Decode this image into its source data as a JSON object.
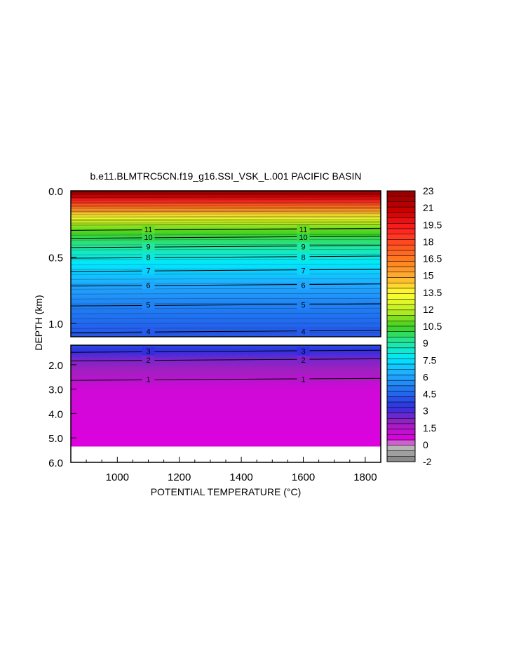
{
  "chart_data": {
    "type": "heatmap",
    "title": "b.e11.BLMTRC5CN.f19_g16.SSI_VSK_L.001 PACIFIC BASIN",
    "xlabel": "POTENTIAL TEMPERATURE (°C)",
    "ylabel": "DEPTH (km)",
    "xlim": [
      850,
      1850
    ],
    "x_ticks": [
      "1000",
      "1200",
      "1400",
      "1600",
      "1800"
    ],
    "upper_panel": {
      "ylim": [
        0.0,
        1.1
      ],
      "y_ticks": [
        "0.0",
        "0.5",
        "1.0"
      ],
      "contour_labels": [
        {
          "value": "11",
          "depth": 0.29
        },
        {
          "value": "10",
          "depth": 0.35
        },
        {
          "value": "9",
          "depth": 0.42
        },
        {
          "value": "8",
          "depth": 0.5
        },
        {
          "value": "7",
          "depth": 0.6
        },
        {
          "value": "6",
          "depth": 0.71
        },
        {
          "value": "5",
          "depth": 0.86
        },
        {
          "value": "4",
          "depth": 1.06
        }
      ]
    },
    "lower_panel": {
      "ylim": [
        1.2,
        6.0
      ],
      "y_ticks": [
        "2.0",
        "3.0",
        "4.0",
        "5.0",
        "6.0"
      ],
      "bottom_depth": 5.35,
      "contour_labels": [
        {
          "value": "3",
          "depth": 1.45
        },
        {
          "value": "2",
          "depth": 1.8
        },
        {
          "value": "1",
          "depth": 2.6
        }
      ]
    },
    "label_columns": [
      1100,
      1600
    ],
    "colorbar": {
      "min": -2,
      "max": 23,
      "step": 0.5,
      "labels": [
        "23",
        "21",
        "19.5",
        "18",
        "16.5",
        "15",
        "13.5",
        "12",
        "10.5",
        "9",
        "7.5",
        "6",
        "4.5",
        "3",
        "1.5",
        "0",
        "-2"
      ],
      "stops": [
        {
          "v": -2,
          "c": "#808080"
        },
        {
          "v": -0.5,
          "c": "#c0c0c0"
        },
        {
          "v": 0,
          "c": "#e000e0"
        },
        {
          "v": 1.5,
          "c": "#a020c0"
        },
        {
          "v": 3,
          "c": "#3030e0"
        },
        {
          "v": 4.5,
          "c": "#2070f0"
        },
        {
          "v": 6,
          "c": "#20a8ff"
        },
        {
          "v": 7.5,
          "c": "#00e8ff"
        },
        {
          "v": 9,
          "c": "#20e8a0"
        },
        {
          "v": 10.5,
          "c": "#40d020"
        },
        {
          "v": 12,
          "c": "#c0f020"
        },
        {
          "v": 13.5,
          "c": "#ffff30"
        },
        {
          "v": 15,
          "c": "#ffb030"
        },
        {
          "v": 16.5,
          "c": "#ff8020"
        },
        {
          "v": 18,
          "c": "#ff5020"
        },
        {
          "v": 19.5,
          "c": "#ff2020"
        },
        {
          "v": 21,
          "c": "#d00000"
        },
        {
          "v": 23,
          "c": "#900000"
        }
      ]
    },
    "surface_profile": [
      {
        "depth": 0.0,
        "temp": 23
      },
      {
        "depth": 0.06,
        "temp": 20
      },
      {
        "depth": 0.12,
        "temp": 17
      },
      {
        "depth": 0.19,
        "temp": 13.5
      },
      {
        "depth": 0.26,
        "temp": 11.5
      },
      {
        "depth": 0.35,
        "temp": 10
      },
      {
        "depth": 0.5,
        "temp": 8
      },
      {
        "depth": 0.6,
        "temp": 7
      },
      {
        "depth": 0.71,
        "temp": 6
      },
      {
        "depth": 0.86,
        "temp": 5
      },
      {
        "depth": 1.06,
        "temp": 4
      },
      {
        "depth": 1.2,
        "temp": 3.6
      },
      {
        "depth": 1.45,
        "temp": 3
      },
      {
        "depth": 1.8,
        "temp": 2
      },
      {
        "depth": 2.6,
        "temp": 1
      },
      {
        "depth": 3.0,
        "temp": 0.4
      },
      {
        "depth": 6.0,
        "temp": 0
      }
    ]
  }
}
